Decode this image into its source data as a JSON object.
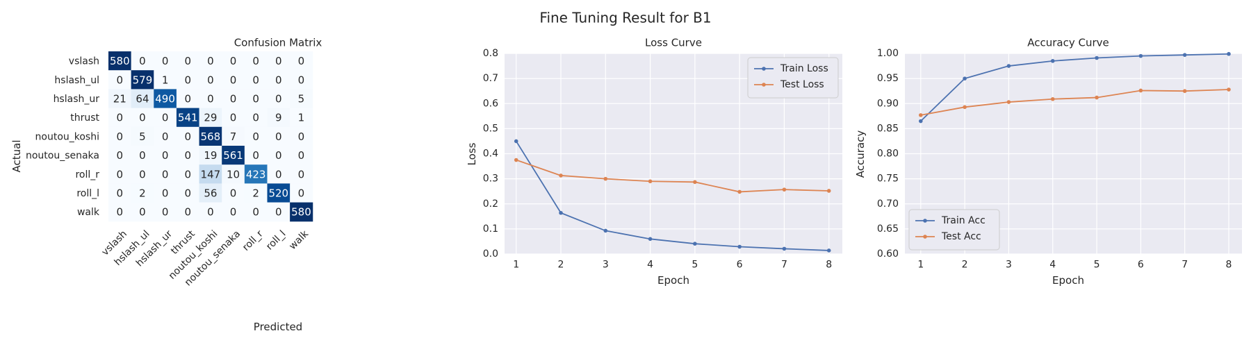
{
  "figure": {
    "title": "Fine Tuning Result for B1"
  },
  "colors": {
    "axes_bg": "#eaeaf2",
    "grid": "#ffffff",
    "train": "#4c72b0",
    "test": "#dd8452",
    "cm_low": "#f7fbff",
    "cm_high": "#08306b",
    "text_dark": "#262626"
  },
  "chart_data": [
    {
      "type": "heatmap",
      "title": "Confusion Matrix",
      "xlabel": "Predicted",
      "ylabel": "Actual",
      "colormap": "Blues",
      "vmin": 0,
      "vmax": 580,
      "row_labels": [
        "vslash",
        "hslash_ul",
        "hslash_ur",
        "thrust",
        "noutou_koshi",
        "noutou_senaka",
        "roll_r",
        "roll_l",
        "walk"
      ],
      "col_labels": [
        "vslash",
        "hslash_ul",
        "hslash_ur",
        "thrust",
        "noutou_koshi",
        "noutou_senaka",
        "roll_r",
        "roll_l",
        "walk"
      ],
      "matrix": [
        [
          580,
          0,
          0,
          0,
          0,
          0,
          0,
          0,
          0
        ],
        [
          0,
          579,
          1,
          0,
          0,
          0,
          0,
          0,
          0
        ],
        [
          21,
          64,
          490,
          0,
          0,
          0,
          0,
          0,
          5
        ],
        [
          0,
          0,
          0,
          541,
          29,
          0,
          0,
          9,
          1
        ],
        [
          0,
          5,
          0,
          0,
          568,
          7,
          0,
          0,
          0
        ],
        [
          0,
          0,
          0,
          0,
          19,
          561,
          0,
          0,
          0
        ],
        [
          0,
          0,
          0,
          0,
          147,
          10,
          423,
          0,
          0
        ],
        [
          0,
          2,
          0,
          0,
          56,
          0,
          2,
          520,
          0
        ],
        [
          0,
          0,
          0,
          0,
          0,
          0,
          0,
          0,
          580
        ]
      ]
    },
    {
      "type": "line",
      "title": "Loss Curve",
      "xlabel": "Epoch",
      "ylabel": "Loss",
      "x": [
        1,
        2,
        3,
        4,
        5,
        6,
        7,
        8
      ],
      "xlim": [
        0.74,
        8.3
      ],
      "ylim": [
        0,
        0.8
      ],
      "xticks": [
        1,
        2,
        3,
        4,
        5,
        6,
        7,
        8
      ],
      "yticks": [
        0.0,
        0.1,
        0.2,
        0.3,
        0.4,
        0.5,
        0.6,
        0.7,
        0.8
      ],
      "ytick_decimals": 1,
      "grid": true,
      "legend_position": "top-right",
      "series": [
        {
          "name": "Train Loss",
          "color": "#4c72b0",
          "values": [
            0.45,
            0.164,
            0.093,
            0.06,
            0.041,
            0.029,
            0.021,
            0.014
          ]
        },
        {
          "name": "Test Loss",
          "color": "#dd8452",
          "values": [
            0.375,
            0.313,
            0.3,
            0.29,
            0.287,
            0.248,
            0.257,
            0.252
          ]
        }
      ]
    },
    {
      "type": "line",
      "title": "Accuracy Curve",
      "xlabel": "Epoch",
      "ylabel": "Accuracy",
      "x": [
        1,
        2,
        3,
        4,
        5,
        6,
        7,
        8
      ],
      "xlim": [
        0.64,
        8.3
      ],
      "ylim": [
        0.6,
        1.0
      ],
      "xticks": [
        1,
        2,
        3,
        4,
        5,
        6,
        7,
        8
      ],
      "yticks": [
        0.6,
        0.65,
        0.7,
        0.75,
        0.8,
        0.85,
        0.9,
        0.95,
        1.0
      ],
      "ytick_decimals": 2,
      "grid": true,
      "legend_position": "bottom-left",
      "series": [
        {
          "name": "Train Acc",
          "color": "#4c72b0",
          "values": [
            0.865,
            0.95,
            0.975,
            0.985,
            0.991,
            0.995,
            0.997,
            0.999
          ]
        },
        {
          "name": "Test Acc",
          "color": "#dd8452",
          "values": [
            0.877,
            0.893,
            0.903,
            0.909,
            0.912,
            0.926,
            0.925,
            0.928
          ]
        }
      ]
    }
  ]
}
